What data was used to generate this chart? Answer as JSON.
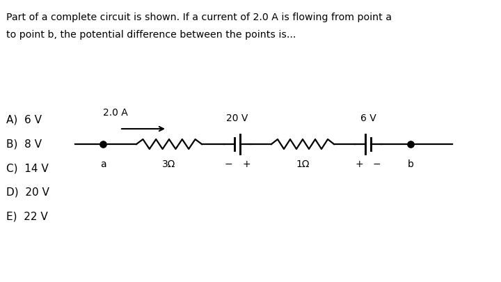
{
  "title_line1": "Part of a complete circuit is shown. If a current of 2.0 A is flowing from point a",
  "title_line2": "to point b, the potential difference between the points is...",
  "choices": [
    "A)  6 V",
    "B)  8 V",
    "C)  14 V",
    "D)  20 V",
    "E)  22 V"
  ],
  "bg_color": "#ffffff",
  "text_color": "#000000",
  "current_label": "2.0 A",
  "resistor1_label": "3Ω",
  "battery1_label": "20 V",
  "resistor2_label": "1Ω",
  "battery2_label": "6 V",
  "point_a_label": "a",
  "point_b_label": "b"
}
